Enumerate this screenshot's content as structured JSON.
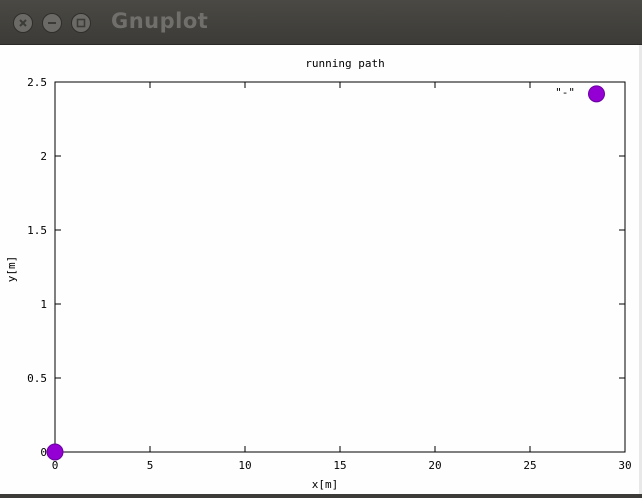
{
  "window": {
    "title": "Gnuplot",
    "buttons": {
      "close": "close-icon",
      "minimize": "minimize-icon",
      "maximize": "maximize-icon"
    }
  },
  "chart_data": {
    "type": "scatter",
    "title": "running path",
    "xlabel": "x[m]",
    "ylabel": "y[m]",
    "xlim": [
      0,
      30
    ],
    "ylim": [
      0,
      2.5
    ],
    "xticks": [
      "0",
      "5",
      "10",
      "15",
      "20",
      "25",
      "30"
    ],
    "yticks": [
      "0",
      "0.5",
      "1",
      "1.5",
      "2",
      "2.5"
    ],
    "legend": {
      "label": "\"-\"",
      "placement": "top-right"
    },
    "series": [
      {
        "name": "\"-\"",
        "color": "#9400d3",
        "points": [
          {
            "x": 0,
            "y": 0
          },
          {
            "x": 28.5,
            "y": 2.42
          }
        ]
      }
    ],
    "grid": false
  }
}
